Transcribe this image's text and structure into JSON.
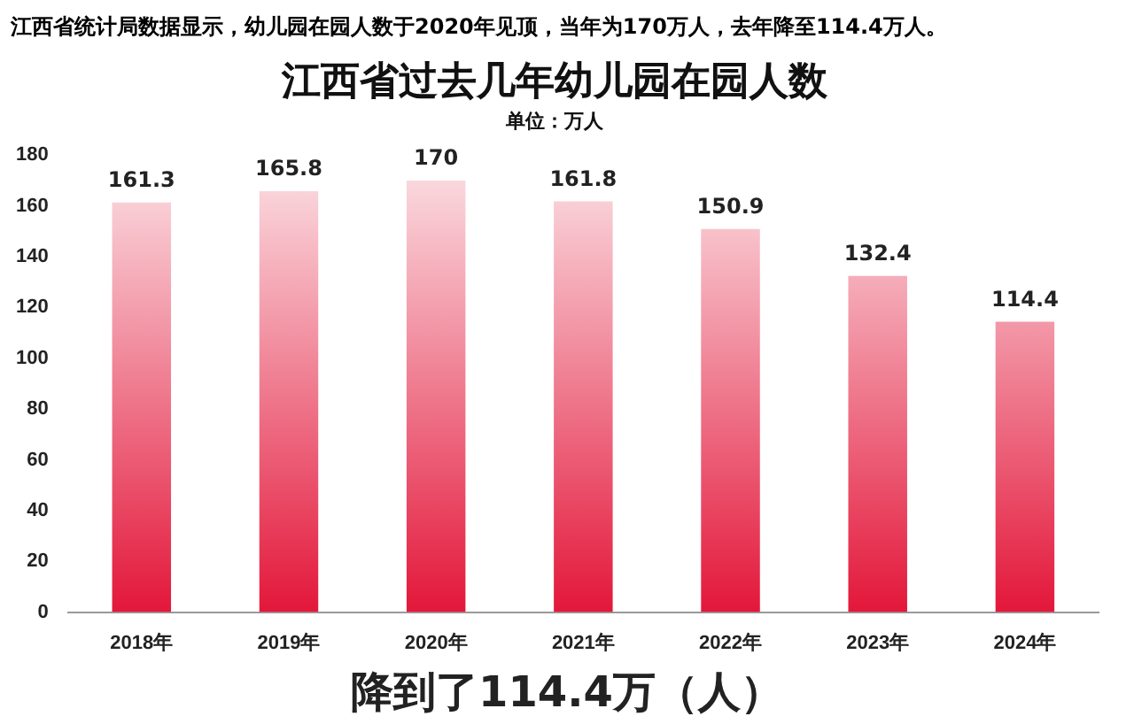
{
  "chart_data": {
    "type": "bar",
    "title": "江西省过去几年幼儿园在园人数",
    "subtitle": "单位：万人",
    "annotations": [
      "江西省统计局数据显示，幼儿园在园人数于2020年见顶，当年为170万人，去年降至114.4万人。",
      "降到了114.4万（人）"
    ],
    "categories": [
      "2018年",
      "2019年",
      "2020年",
      "2021年",
      "2022年",
      "2023年",
      "2024年"
    ],
    "values": [
      161.3,
      165.8,
      170,
      161.8,
      150.9,
      132.4,
      114.4
    ],
    "color": "#e3173a",
    "ylim": [
      0,
      180
    ],
    "yticks": [
      0,
      20,
      40,
      60,
      80,
      100,
      120,
      140,
      160,
      180
    ],
    "grid": false,
    "data_labels": true
  }
}
